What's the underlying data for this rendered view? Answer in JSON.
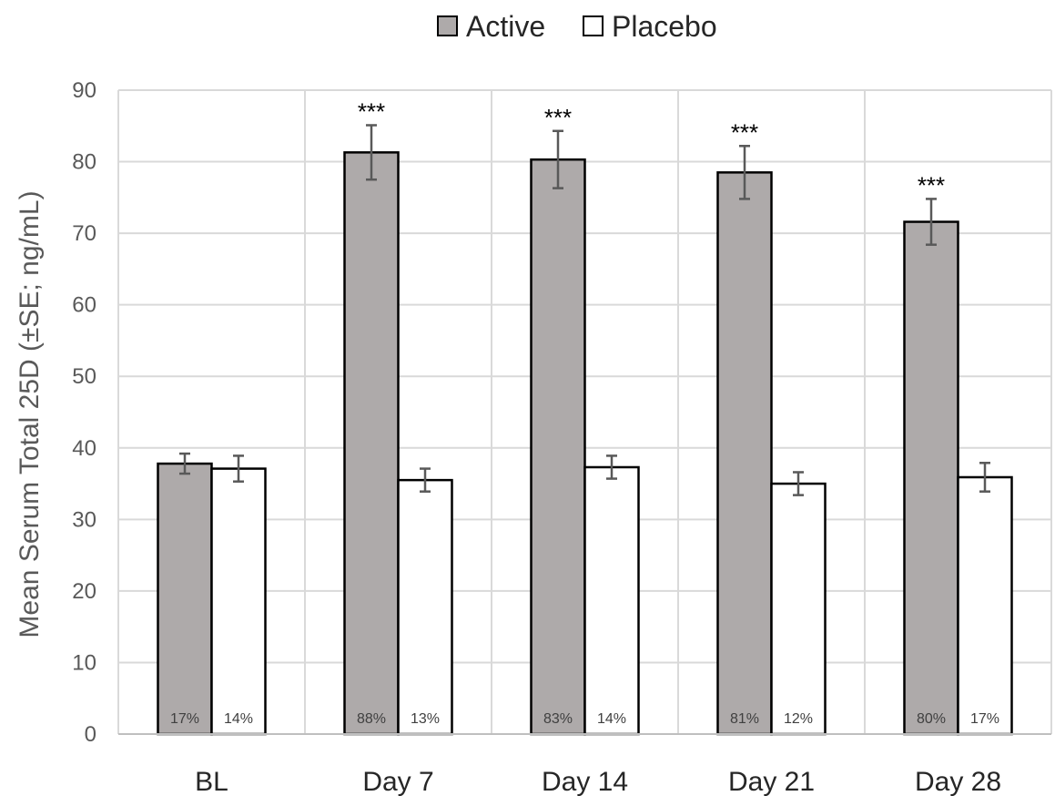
{
  "chart_data": {
    "type": "bar",
    "title": "",
    "xlabel": "",
    "ylabel": "Mean Serum Total 25D (±SE; ng/mL)",
    "ylim": [
      0,
      90
    ],
    "yticks": [
      0,
      10,
      20,
      30,
      40,
      50,
      60,
      70,
      80,
      90
    ],
    "grid": true,
    "legend_position": "top-center",
    "categories": [
      "BL",
      "Day 7",
      "Day 14",
      "Day 21",
      "Day 28"
    ],
    "series": [
      {
        "name": "Active",
        "color": "#aeaaaa",
        "values": [
          37.8,
          81.3,
          80.3,
          78.5,
          71.6
        ],
        "errors": [
          1.4,
          3.8,
          4.0,
          3.7,
          3.2
        ],
        "bar_labels": [
          "17%",
          "88%",
          "83%",
          "81%",
          "80%"
        ],
        "annotations": [
          "",
          "***",
          "***",
          "***",
          "***"
        ]
      },
      {
        "name": "Placebo",
        "color": "#ffffff",
        "values": [
          37.1,
          35.5,
          37.3,
          35.0,
          35.9
        ],
        "errors": [
          1.8,
          1.6,
          1.6,
          1.6,
          2.0
        ],
        "bar_labels": [
          "14%",
          "13%",
          "14%",
          "12%",
          "17%"
        ],
        "annotations": [
          "",
          "",
          "",
          "",
          ""
        ]
      }
    ]
  }
}
